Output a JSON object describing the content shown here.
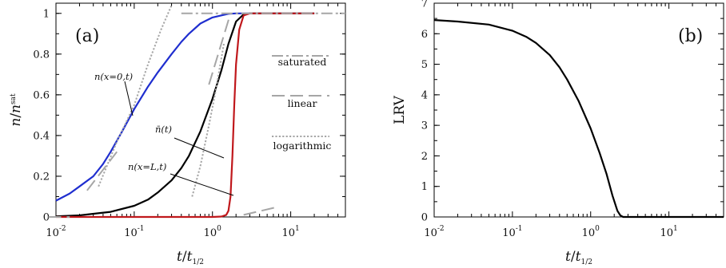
{
  "chart_data": [
    {
      "type": "line",
      "panel_label": "(a)",
      "xlabel": "t/t1/2",
      "xlabel_sub": "1/2",
      "ylabel": "n/nsat",
      "ylabel_sup": "sat",
      "xscale": "log",
      "xlim": [
        0.01,
        50
      ],
      "ylim": [
        0,
        1.05
      ],
      "x_ticks": [
        {
          "base": "10",
          "exp": "-2",
          "value": 0.01
        },
        {
          "base": "10",
          "exp": "-1",
          "value": 0.1
        },
        {
          "base": "10",
          "exp": "0",
          "value": 1
        },
        {
          "base": "10",
          "exp": "1",
          "value": 10
        }
      ],
      "y_ticks": [
        "0",
        "0.2",
        "0.4",
        "0.6",
        "0.8",
        "1"
      ],
      "y_tick_values": [
        0,
        0.2,
        0.4,
        0.6,
        0.8,
        1
      ],
      "series": [
        {
          "name": "n(x=0,t)",
          "color": "#1f2ecf",
          "style": "solid",
          "x": [
            0.01,
            0.015,
            0.02,
            0.03,
            0.04,
            0.05,
            0.07,
            0.1,
            0.15,
            0.2,
            0.3,
            0.4,
            0.5,
            0.7,
            1.0,
            1.3,
            1.6,
            2.0,
            3.0,
            20
          ],
          "y": [
            0.08,
            0.115,
            0.15,
            0.2,
            0.26,
            0.32,
            0.42,
            0.53,
            0.64,
            0.71,
            0.8,
            0.86,
            0.9,
            0.95,
            0.98,
            0.99,
            0.998,
            1.0,
            1.0,
            1.0
          ]
        },
        {
          "name": "n̄(t)",
          "color": "#000000",
          "style": "solid",
          "x": [
            0.01,
            0.02,
            0.05,
            0.1,
            0.15,
            0.2,
            0.3,
            0.4,
            0.5,
            0.7,
            1.0,
            1.3,
            1.6,
            2.0,
            2.5,
            3.0,
            20
          ],
          "y": [
            0.003,
            0.008,
            0.025,
            0.055,
            0.085,
            0.12,
            0.18,
            0.24,
            0.3,
            0.42,
            0.58,
            0.72,
            0.85,
            0.96,
            0.995,
            1.0,
            1.0
          ]
        },
        {
          "name": "n(x=L,t)",
          "color": "#c0181c",
          "style": "solid",
          "x": [
            0.01,
            1.0,
            1.3,
            1.5,
            1.6,
            1.7,
            1.8,
            1.9,
            2.0,
            2.2,
            2.5,
            3.0,
            20
          ],
          "y": [
            0.0,
            0.0,
            0.002,
            0.01,
            0.03,
            0.1,
            0.3,
            0.55,
            0.75,
            0.92,
            0.99,
            1.0,
            1.0
          ]
        },
        {
          "name": "saturated",
          "color": "#a6a6a6",
          "style": "dashdot",
          "x": [
            0.4,
            50
          ],
          "y": [
            1.0,
            1.0
          ]
        },
        {
          "name": "linear",
          "color": "#a6a6a6",
          "style": "longdash",
          "x": [
            0.025,
            0.06
          ],
          "y": [
            0.13,
            0.32
          ],
          "extra_segments": [
            {
              "x": [
                0.008,
                0.015
              ],
              "y": [
                0.0,
                0.0
              ]
            },
            {
              "x": [
                2.5,
                7.0
              ],
              "y": [
                0.01,
                0.05
              ]
            },
            {
              "x": [
                0.9,
                1.7
              ],
              "y": [
                0.65,
                1.0
              ]
            }
          ]
        },
        {
          "name": "logarithmic",
          "color": "#a6a6a6",
          "style": "dotted",
          "x": [
            0.035,
            0.06,
            0.1,
            0.15,
            0.22,
            0.3
          ],
          "y": [
            0.15,
            0.37,
            0.55,
            0.75,
            0.92,
            1.04
          ],
          "extra_segments": [
            {
              "x": [
                0.55,
                0.7,
                0.9,
                1.1,
                1.4
              ],
              "y": [
                0.1,
                0.25,
                0.45,
                0.62,
                0.85
              ]
            }
          ]
        }
      ],
      "legend": [
        {
          "label": "saturated",
          "style": "dashdot"
        },
        {
          "label": "linear",
          "style": "longdash"
        },
        {
          "label": "logarithmic",
          "style": "dotted"
        }
      ],
      "annotations": [
        {
          "text": "n(x=0,t)",
          "target": "n(x=0,t)"
        },
        {
          "text": "n̄(t)",
          "target": "n̄(t)"
        },
        {
          "text": "n(x=L,t)",
          "target": "n(x=L,t)"
        }
      ],
      "legend_placement": "right",
      "grid": false
    },
    {
      "type": "line",
      "panel_label": "(b)",
      "xlabel": "t/t1/2",
      "xlabel_sub": "1/2",
      "ylabel": "LRV",
      "xscale": "log",
      "xlim": [
        0.01,
        50
      ],
      "ylim": [
        0,
        7
      ],
      "x_ticks": [
        {
          "base": "10",
          "exp": "-2",
          "value": 0.01
        },
        {
          "base": "10",
          "exp": "-1",
          "value": 0.1
        },
        {
          "base": "10",
          "exp": "0",
          "value": 1
        },
        {
          "base": "10",
          "exp": "1",
          "value": 10
        }
      ],
      "y_ticks": [
        "0",
        "1",
        "2",
        "3",
        "4",
        "5",
        "6",
        "7"
      ],
      "y_tick_values": [
        0,
        1,
        2,
        3,
        4,
        5,
        6,
        7
      ],
      "series": [
        {
          "name": "LRV",
          "color": "#000000",
          "style": "solid",
          "x": [
            0.01,
            0.02,
            0.05,
            0.1,
            0.15,
            0.2,
            0.3,
            0.4,
            0.5,
            0.7,
            1.0,
            1.3,
            1.6,
            1.9,
            2.2,
            2.4,
            2.6,
            3.0,
            50
          ],
          "y": [
            6.45,
            6.4,
            6.3,
            6.1,
            5.9,
            5.7,
            5.3,
            4.9,
            4.5,
            3.8,
            2.9,
            2.1,
            1.4,
            0.7,
            0.2,
            0.05,
            0.0,
            0.0,
            0.0
          ]
        }
      ],
      "grid": false
    }
  ]
}
